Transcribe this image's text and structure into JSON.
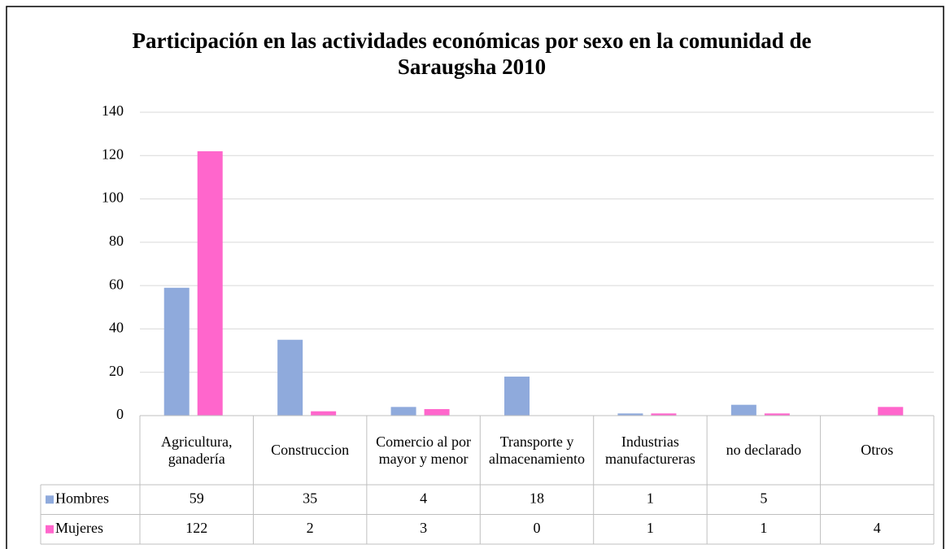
{
  "chart_data": {
    "type": "bar",
    "title": "Participación en las actividades económicas por sexo en la comunidad de Saraugsha 2010",
    "categories": [
      "Agricultura, ganadería",
      "Construccion",
      "Comercio al por mayor y menor",
      "Transporte y almacenamiento",
      "Industrias manufactureras",
      "no declarado",
      "Otros"
    ],
    "series": [
      {
        "name": "Hombres",
        "color": "#8faadc",
        "values": [
          59,
          35,
          4,
          18,
          1,
          5,
          null
        ]
      },
      {
        "name": "Mujeres",
        "color": "#ff66cc",
        "values": [
          122,
          2,
          3,
          0,
          1,
          1,
          4
        ]
      }
    ],
    "ylim": [
      0,
      140
    ],
    "yticks": [
      0,
      20,
      40,
      60,
      80,
      100,
      120,
      140
    ],
    "grid": true,
    "data_table": true
  }
}
